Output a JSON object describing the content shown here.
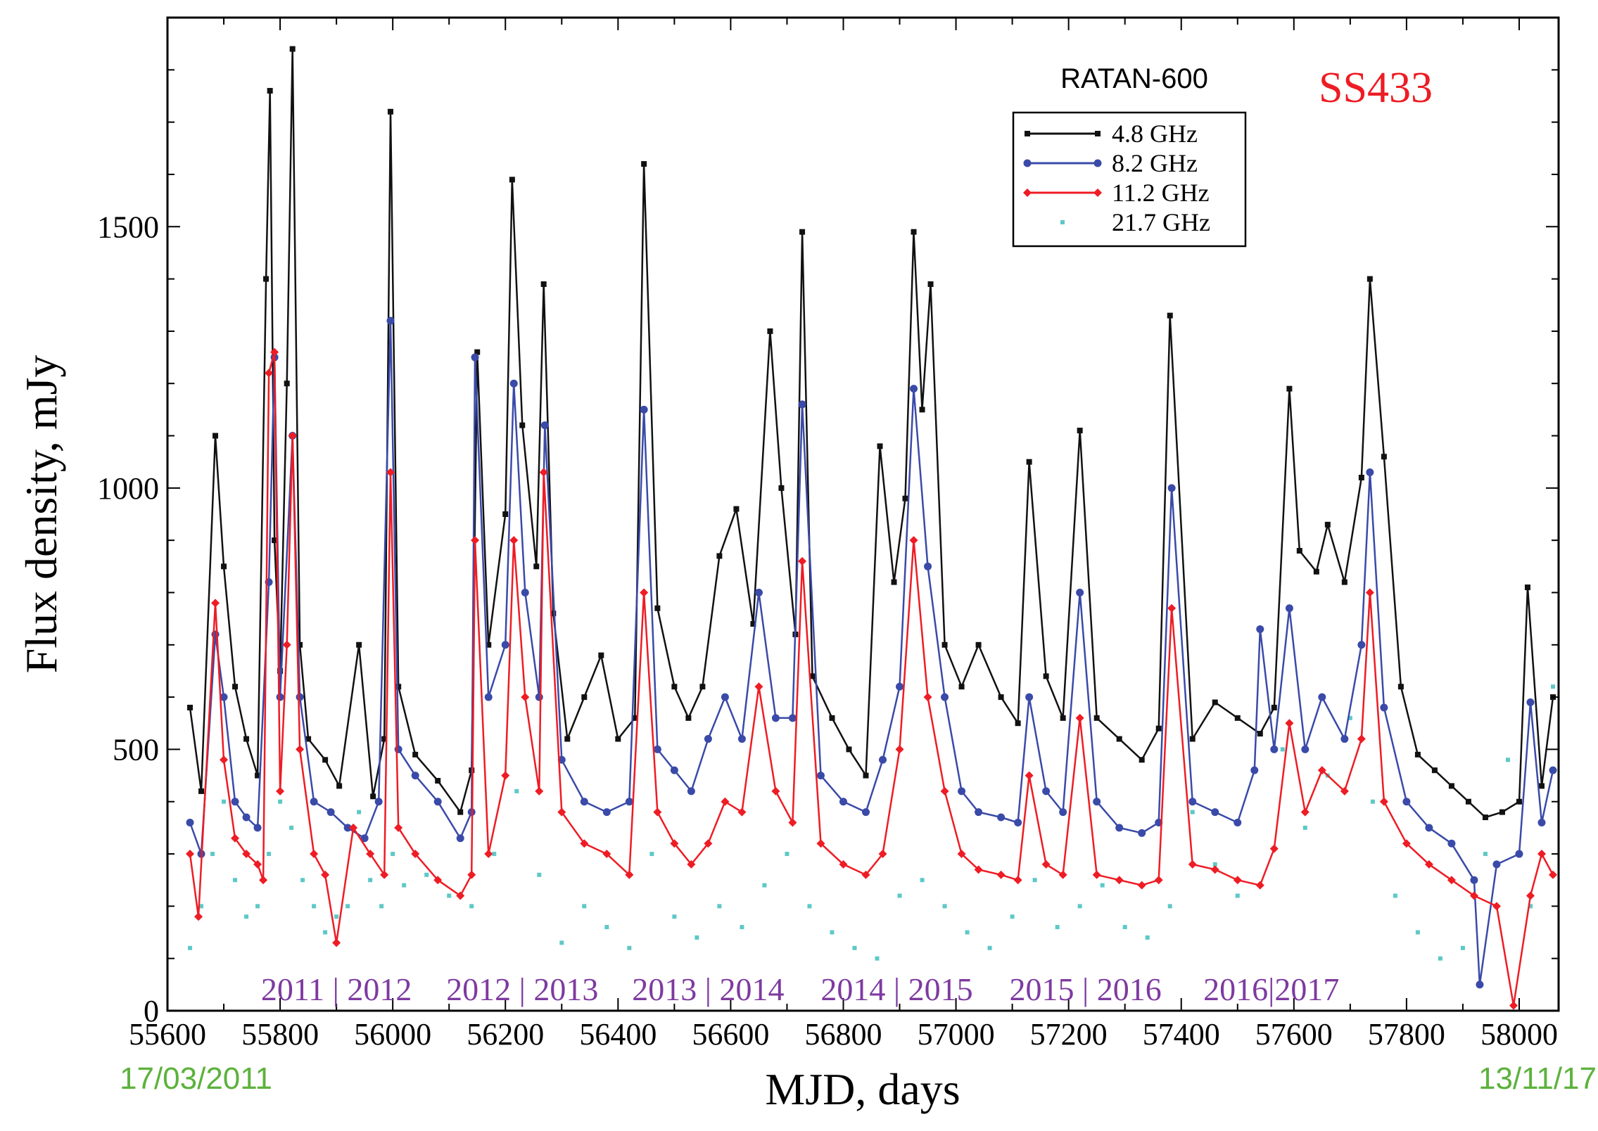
{
  "chart_data": {
    "type": "line",
    "title": "",
    "instrument": "RATAN-600",
    "source": "SS433",
    "xlabel": "MJD, days",
    "ylabel": "Flux density, mJy",
    "xlim": [
      55600,
      58070
    ],
    "ylim": [
      0,
      1900
    ],
    "x_ticks": [
      55600,
      55800,
      56000,
      56200,
      56400,
      56600,
      56800,
      57000,
      57200,
      57400,
      57600,
      57800,
      58000
    ],
    "x_tick_labels": [
      "55600",
      "55800",
      "56000",
      "56200",
      "56400",
      "56600",
      "56800",
      "57000",
      "57200",
      "57400",
      "57600",
      "57800",
      "58000"
    ],
    "y_ticks": [
      0,
      500,
      1000,
      1500
    ],
    "y_tick_labels": [
      "0",
      "500",
      "1000",
      "1500"
    ],
    "start_date": "17/03/2011",
    "end_date": "13/11/17",
    "year_labels": [
      {
        "text": "2011 | 2012",
        "mjd": 55900
      },
      {
        "text": "2012 | 2013",
        "mjd": 56230
      },
      {
        "text": "2013 | 2014",
        "mjd": 56560
      },
      {
        "text": "2014 | 2015",
        "mjd": 56895
      },
      {
        "text": "2015 | 2016",
        "mjd": 57230
      },
      {
        "text": "2016|2017",
        "mjd": 57560
      }
    ],
    "legend": {
      "position": "top-right",
      "entries": [
        "4.8 GHz",
        "8.2 GHz",
        "11.2 GHz",
        "21.7 GHz"
      ]
    },
    "series": [
      {
        "name": "4.8 GHz",
        "color": "#111111",
        "marker": "square",
        "line": true,
        "x": [
          55640,
          55660,
          55685,
          55700,
          55720,
          55740,
          55760,
          55775,
          55782,
          55790,
          55800,
          55812,
          55822,
          55835,
          55850,
          55880,
          55905,
          55940,
          55965,
          55985,
          55996,
          56010,
          56040,
          56080,
          56120,
          56140,
          56150,
          56170,
          56200,
          56212,
          56230,
          56255,
          56268,
          56285,
          56310,
          56340,
          56370,
          56400,
          56430,
          56446,
          56470,
          56500,
          56525,
          56550,
          56580,
          56610,
          56640,
          56670,
          56690,
          56715,
          56727,
          56745,
          56780,
          56810,
          56840,
          56865,
          56890,
          56910,
          56925,
          56940,
          56955,
          56980,
          57010,
          57040,
          57080,
          57110,
          57130,
          57160,
          57190,
          57220,
          57250,
          57290,
          57330,
          57360,
          57380,
          57420,
          57460,
          57500,
          57540,
          57565,
          57592,
          57610,
          57640,
          57660,
          57690,
          57720,
          57735,
          57760,
          57790,
          57820,
          57850,
          57880,
          57910,
          57940,
          57970,
          58000,
          58015,
          58040,
          58060
        ],
        "y": [
          580,
          420,
          1100,
          850,
          620,
          520,
          450,
          1400,
          1760,
          900,
          650,
          1200,
          1840,
          700,
          520,
          480,
          430,
          700,
          410,
          520,
          1720,
          620,
          490,
          440,
          380,
          460,
          1260,
          700,
          950,
          1590,
          1120,
          850,
          1390,
          760,
          520,
          600,
          680,
          520,
          560,
          1620,
          770,
          620,
          560,
          620,
          870,
          960,
          740,
          1300,
          1000,
          720,
          1490,
          640,
          560,
          500,
          450,
          1080,
          820,
          980,
          1490,
          1150,
          1390,
          700,
          620,
          700,
          600,
          550,
          1050,
          640,
          560,
          1110,
          560,
          520,
          480,
          540,
          1330,
          520,
          590,
          560,
          530,
          580,
          1190,
          880,
          840,
          930,
          820,
          1020,
          1400,
          1060,
          620,
          490,
          460,
          430,
          400,
          370,
          380,
          400,
          810,
          430,
          600
        ]
      },
      {
        "name": "8.2 GHz",
        "color": "#3a4aa8",
        "marker": "circle",
        "line": true,
        "x": [
          55640,
          55660,
          55685,
          55700,
          55720,
          55740,
          55760,
          55780,
          55790,
          55800,
          55822,
          55835,
          55860,
          55890,
          55920,
          55950,
          55975,
          55996,
          56010,
          56040,
          56080,
          56120,
          56140,
          56146,
          56170,
          56200,
          56215,
          56235,
          56260,
          56270,
          56300,
          56340,
          56380,
          56420,
          56446,
          56470,
          56500,
          56530,
          56560,
          56590,
          56620,
          56650,
          56680,
          56710,
          56727,
          56760,
          56800,
          56840,
          56870,
          56900,
          56925,
          56950,
          56980,
          57010,
          57040,
          57080,
          57110,
          57130,
          57160,
          57190,
          57220,
          57250,
          57290,
          57330,
          57360,
          57383,
          57420,
          57460,
          57500,
          57530,
          57540,
          57565,
          57592,
          57620,
          57650,
          57690,
          57720,
          57735,
          57760,
          57800,
          57840,
          57880,
          57920,
          57930,
          57960,
          58000,
          58020,
          58040,
          58060
        ],
        "y": [
          360,
          300,
          720,
          600,
          400,
          370,
          350,
          820,
          1250,
          600,
          1100,
          600,
          400,
          380,
          350,
          330,
          400,
          1320,
          500,
          450,
          400,
          330,
          380,
          1250,
          600,
          700,
          1200,
          800,
          600,
          1120,
          480,
          400,
          380,
          400,
          1150,
          500,
          460,
          420,
          520,
          600,
          520,
          800,
          560,
          560,
          1160,
          450,
          400,
          380,
          480,
          620,
          1190,
          850,
          600,
          420,
          380,
          370,
          360,
          600,
          420,
          380,
          800,
          400,
          350,
          340,
          360,
          1000,
          400,
          380,
          360,
          460,
          730,
          500,
          770,
          500,
          600,
          520,
          700,
          1030,
          580,
          400,
          350,
          320,
          250,
          50,
          280,
          300,
          590,
          360,
          460
        ]
      },
      {
        "name": "11.2 GHz",
        "color": "#ee1c24",
        "marker": "diamond",
        "line": true,
        "x": [
          55640,
          55655,
          55685,
          55700,
          55720,
          55740,
          55760,
          55770,
          55780,
          55790,
          55800,
          55812,
          55822,
          55835,
          55860,
          55880,
          55900,
          55930,
          55960,
          55985,
          55996,
          56010,
          56040,
          56080,
          56120,
          56140,
          56146,
          56170,
          56200,
          56215,
          56235,
          56260,
          56268,
          56300,
          56340,
          56380,
          56420,
          56446,
          56470,
          56500,
          56530,
          56560,
          56590,
          56620,
          56650,
          56680,
          56710,
          56727,
          56760,
          56800,
          56840,
          56870,
          56900,
          56925,
          56950,
          56980,
          57010,
          57040,
          57080,
          57110,
          57130,
          57160,
          57190,
          57220,
          57250,
          57290,
          57330,
          57360,
          57383,
          57420,
          57460,
          57500,
          57540,
          57565,
          57592,
          57620,
          57650,
          57690,
          57720,
          57735,
          57760,
          57800,
          57840,
          57880,
          57920,
          57960,
          57990,
          58020,
          58040,
          58060
        ],
        "y": [
          300,
          180,
          780,
          480,
          330,
          300,
          280,
          250,
          1220,
          1260,
          420,
          700,
          1100,
          500,
          300,
          260,
          130,
          350,
          300,
          260,
          1030,
          350,
          300,
          250,
          220,
          260,
          900,
          300,
          450,
          900,
          600,
          420,
          1030,
          380,
          320,
          300,
          260,
          800,
          380,
          320,
          280,
          320,
          400,
          380,
          620,
          420,
          360,
          860,
          320,
          280,
          260,
          300,
          500,
          900,
          600,
          420,
          300,
          270,
          260,
          250,
          450,
          280,
          260,
          560,
          260,
          250,
          240,
          250,
          770,
          280,
          270,
          250,
          240,
          310,
          550,
          380,
          460,
          420,
          520,
          800,
          400,
          320,
          280,
          250,
          220,
          200,
          10,
          220,
          300,
          260
        ]
      },
      {
        "name": "21.7 GHz",
        "color": "#5ec8c8",
        "marker": "dot",
        "line": false,
        "x": [
          55640,
          55660,
          55680,
          55700,
          55720,
          55740,
          55760,
          55780,
          55800,
          55820,
          55840,
          55860,
          55880,
          55900,
          55920,
          55940,
          55960,
          55980,
          56000,
          56020,
          56060,
          56100,
          56140,
          56180,
          56220,
          56260,
          56300,
          56340,
          56380,
          56420,
          56460,
          56500,
          56540,
          56580,
          56620,
          56660,
          56700,
          56740,
          56780,
          56820,
          56860,
          56900,
          56940,
          56980,
          57020,
          57060,
          57100,
          57140,
          57180,
          57220,
          57260,
          57300,
          57340,
          57380,
          57420,
          57460,
          57500,
          57540,
          57580,
          57620,
          57660,
          57700,
          57740,
          57780,
          57820,
          57860,
          57900,
          57940,
          57980,
          58020,
          58060
        ],
        "y": [
          120,
          200,
          300,
          400,
          250,
          180,
          200,
          300,
          400,
          350,
          250,
          200,
          150,
          180,
          200,
          380,
          250,
          200,
          300,
          240,
          260,
          220,
          200,
          300,
          420,
          260,
          130,
          200,
          160,
          120,
          300,
          180,
          140,
          200,
          160,
          240,
          300,
          200,
          150,
          120,
          100,
          220,
          250,
          200,
          150,
          120,
          180,
          250,
          160,
          200,
          240,
          160,
          140,
          200,
          380,
          280,
          220,
          240,
          500,
          350,
          450,
          560,
          400,
          220,
          150,
          100,
          120,
          300,
          480,
          200,
          620
        ]
      }
    ]
  }
}
